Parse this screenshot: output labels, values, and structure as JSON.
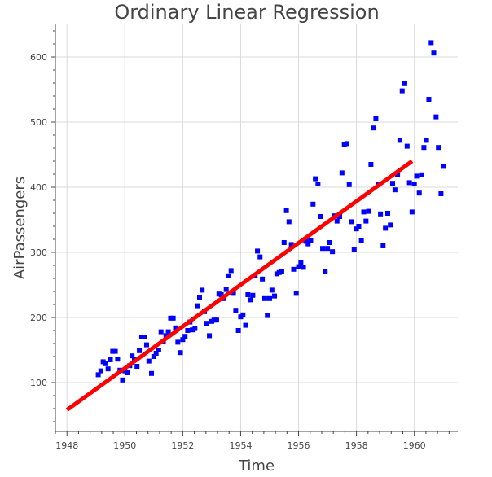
{
  "chart_data": {
    "type": "scatter",
    "title": "Ordinary Linear Regression",
    "xlabel": "Time",
    "ylabel": "AirPassengers",
    "xlim": [
      1947.6,
      1961.5
    ],
    "ylim": [
      25,
      650
    ],
    "x_ticks": [
      1948,
      1950,
      1952,
      1954,
      1956,
      1958,
      1960
    ],
    "y_ticks": [
      100,
      200,
      300,
      400,
      500,
      600
    ],
    "grid": true,
    "legend": "none",
    "colors": {
      "points": "#0000ff",
      "line": "#ff0000",
      "grid": "#d9d9d9",
      "axis": "#444444"
    },
    "series": [
      {
        "type": "scatter",
        "x": [
          1949.08,
          1949.17,
          1949.25,
          1949.33,
          1949.42,
          1949.5,
          1949.58,
          1949.67,
          1949.75,
          1949.83,
          1949.92,
          1950.0,
          1950.08,
          1950.17,
          1950.25,
          1950.33,
          1950.42,
          1950.5,
          1950.58,
          1950.67,
          1950.75,
          1950.83,
          1950.92,
          1951.0,
          1951.08,
          1951.17,
          1951.25,
          1951.33,
          1951.42,
          1951.5,
          1951.58,
          1951.67,
          1951.75,
          1951.83,
          1951.92,
          1952.0,
          1952.08,
          1952.17,
          1952.25,
          1952.33,
          1952.42,
          1952.5,
          1952.58,
          1952.67,
          1952.75,
          1952.83,
          1952.92,
          1953.0,
          1953.08,
          1953.17,
          1953.25,
          1953.33,
          1953.42,
          1953.5,
          1953.58,
          1953.67,
          1953.75,
          1953.83,
          1953.92,
          1954.0,
          1954.08,
          1954.17,
          1954.25,
          1954.33,
          1954.42,
          1954.5,
          1954.58,
          1954.67,
          1954.75,
          1954.83,
          1954.92,
          1955.0,
          1955.08,
          1955.17,
          1955.25,
          1955.33,
          1955.42,
          1955.5,
          1955.58,
          1955.67,
          1955.75,
          1955.83,
          1955.92,
          1956.0,
          1956.08,
          1956.17,
          1956.25,
          1956.33,
          1956.42,
          1956.5,
          1956.58,
          1956.67,
          1956.75,
          1956.83,
          1956.92,
          1957.0,
          1957.08,
          1957.17,
          1957.25,
          1957.33,
          1957.42,
          1957.5,
          1957.58,
          1957.67,
          1957.75,
          1957.83,
          1957.92,
          1958.0,
          1958.08,
          1958.17,
          1958.25,
          1958.33,
          1958.42,
          1958.5,
          1958.58,
          1958.67,
          1958.75,
          1958.83,
          1958.92,
          1959.0,
          1959.08,
          1959.17,
          1959.25,
          1959.33,
          1959.42,
          1959.5,
          1959.58,
          1959.67,
          1959.75,
          1959.83,
          1959.92,
          1960.0,
          1960.08,
          1960.17,
          1960.25,
          1960.33,
          1960.42,
          1960.5,
          1960.58,
          1960.67,
          1960.75,
          1960.83,
          1960.92,
          1961.0
        ],
        "y": [
          112,
          118,
          132,
          129,
          121,
          135,
          148,
          148,
          136,
          119,
          104,
          118,
          115,
          126,
          141,
          135,
          125,
          149,
          170,
          170,
          158,
          133,
          114,
          140,
          145,
          150,
          178,
          163,
          172,
          178,
          199,
          199,
          184,
          162,
          146,
          166,
          171,
          180,
          193,
          181,
          183,
          218,
          230,
          242,
          209,
          191,
          172,
          194,
          196,
          196,
          236,
          235,
          229,
          243,
          264,
          272,
          237,
          211,
          180,
          201,
          204,
          188,
          235,
          227,
          234,
          264,
          302,
          293,
          259,
          229,
          203,
          229,
          242,
          233,
          267,
          269,
          270,
          315,
          364,
          347,
          312,
          274,
          237,
          278,
          284,
          277,
          317,
          313,
          318,
          374,
          413,
          405,
          355,
          306,
          271,
          306,
          315,
          301,
          356,
          348,
          355,
          422,
          465,
          467,
          404,
          347,
          305,
          336,
          340,
          318,
          362,
          348,
          363,
          435,
          491,
          505,
          404,
          359,
          310,
          337,
          360,
          342,
          406,
          396,
          420,
          472,
          548,
          559,
          463,
          407,
          362,
          405,
          417,
          391,
          419,
          461,
          472,
          535,
          622,
          606,
          508,
          461,
          390,
          432
        ]
      },
      {
        "type": "line",
        "name": "",
        "x": [
          1948.0,
          1959.92
        ],
        "y": [
          58,
          440
        ]
      }
    ]
  }
}
